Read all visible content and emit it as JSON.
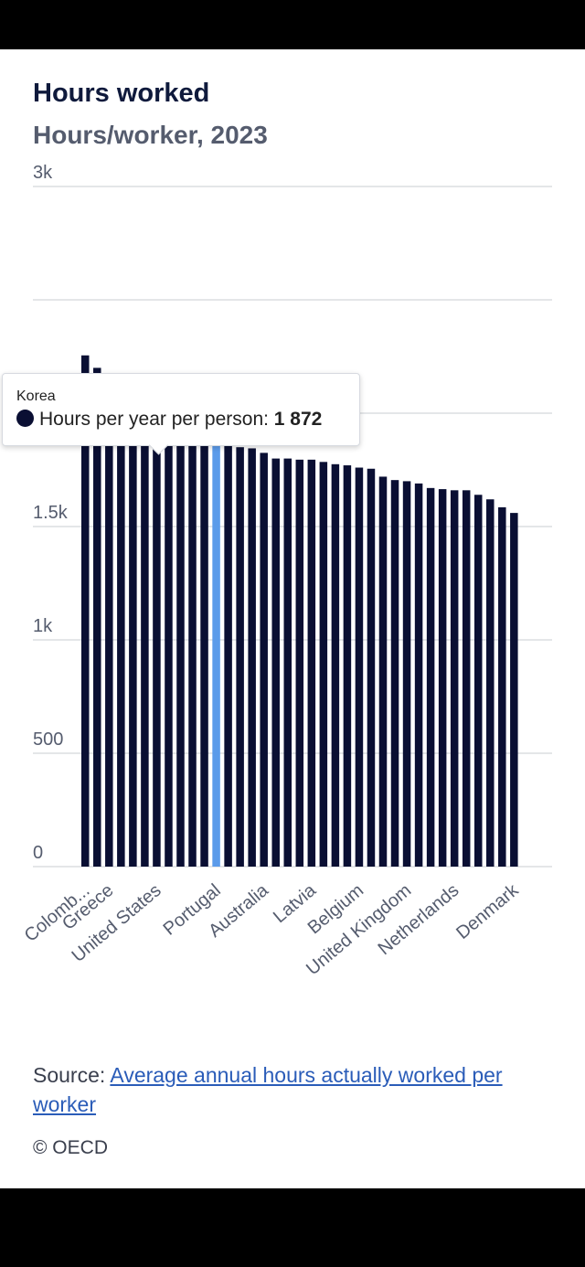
{
  "header": {
    "title": "Hours worked",
    "subtitle": "Hours/worker, 2023"
  },
  "tooltip": {
    "country": "Korea",
    "series_label": "Hours per year per person: ",
    "value": "1 872"
  },
  "footer": {
    "source_prefix": "Source: ",
    "source_link": "Average annual hours actually worked per worker",
    "copyright": "© OECD"
  },
  "colors": {
    "bar": "#0a0f33",
    "highlight": "#5b9bea",
    "grid": "#c9ccd2",
    "axis_text": "#555c6e"
  },
  "chart_data": {
    "type": "bar",
    "title": "Hours worked",
    "subtitle": "Hours/worker, 2023",
    "y_ticks": [
      {
        "value": 0,
        "label": "0"
      },
      {
        "value": 500,
        "label": "500"
      },
      {
        "value": 1000,
        "label": "1k"
      },
      {
        "value": 1500,
        "label": "1.5k"
      },
      {
        "value": 2000,
        "label": "2k"
      },
      {
        "value": 2500,
        "label": ""
      },
      {
        "value": 3000,
        "label": "3k"
      }
    ],
    "ylim": [
      0,
      3000
    ],
    "grid": true,
    "x_tick_labels": [
      {
        "index": 0,
        "label": "Colomb..."
      },
      {
        "index": 2,
        "label": "Greece"
      },
      {
        "index": 6,
        "label": "United States"
      },
      {
        "index": 11,
        "label": "Portugal"
      },
      {
        "index": 15,
        "label": "Australia"
      },
      {
        "index": 19,
        "label": "Latvia"
      },
      {
        "index": 23,
        "label": "Belgium"
      },
      {
        "index": 27,
        "label": "United Kingdom"
      },
      {
        "index": 31,
        "label": "Netherlands"
      },
      {
        "index": 36,
        "label": "Denmark"
      }
    ],
    "highlight_index": 11,
    "hovered_index": 6,
    "values": [
      2255,
      2200,
      2110,
      2095,
      2080,
      2055,
      2045,
      1965,
      1965,
      1930,
      1915,
      1880,
      1875,
      1850,
      1845,
      1825,
      1800,
      1800,
      1795,
      1795,
      1785,
      1775,
      1770,
      1760,
      1755,
      1720,
      1705,
      1700,
      1690,
      1670,
      1665,
      1660,
      1660,
      1640,
      1620,
      1585,
      1560
    ]
  }
}
